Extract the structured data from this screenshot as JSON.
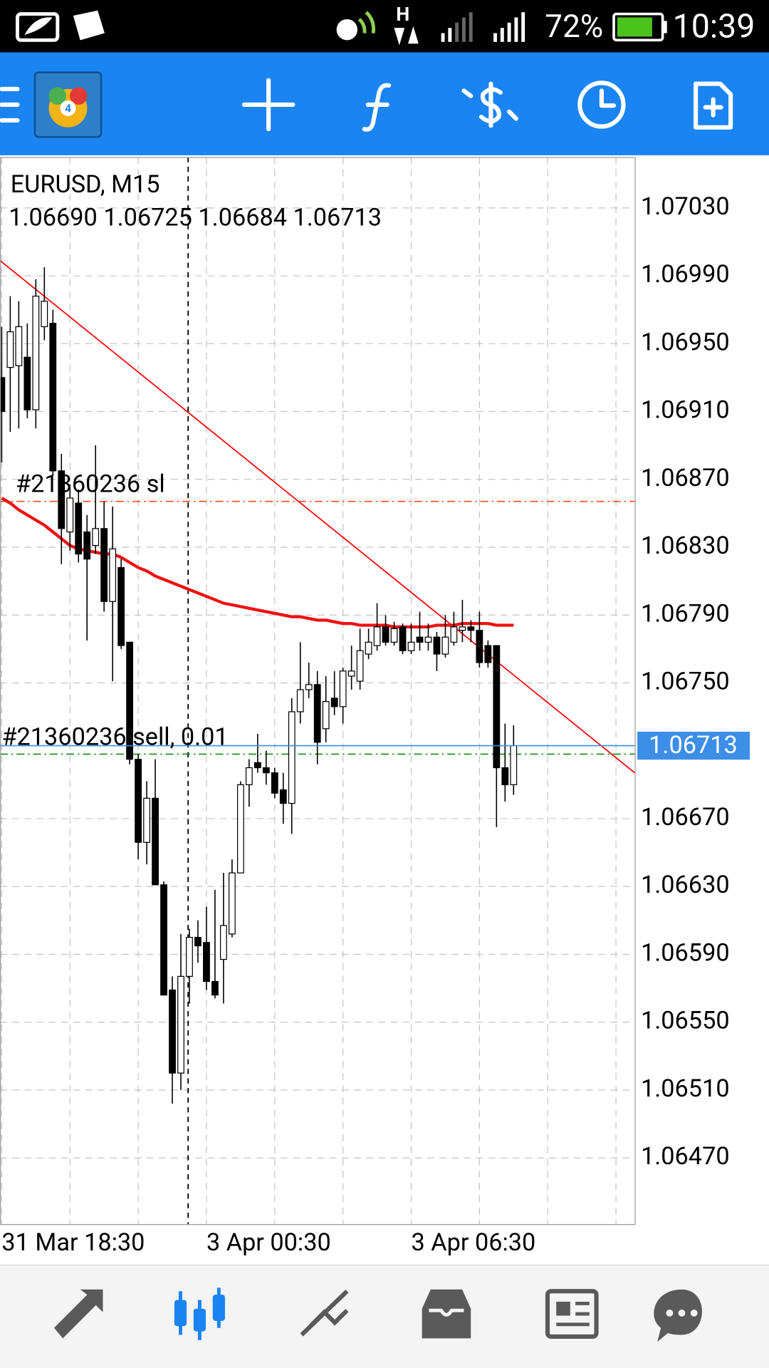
{
  "status_bar": {
    "battery": "72%",
    "time": "10:39"
  },
  "chart_data": {
    "type": "candlestick",
    "title": "EURUSD, M15",
    "subtitle": "1.06690 1.06725 1.06684 1.06713",
    "categories": [
      "31 Mar 18:30",
      null,
      null,
      null,
      null,
      null,
      null,
      null,
      null,
      null,
      null,
      null,
      null,
      null,
      null,
      null,
      null,
      null,
      null,
      null,
      null,
      null,
      null,
      null,
      "3 Apr 00:30",
      null,
      null,
      null,
      null,
      null,
      null,
      null,
      null,
      null,
      null,
      null,
      null,
      null,
      null,
      null,
      null,
      null,
      null,
      null,
      null,
      null,
      null,
      null,
      "3 Apr 06:30",
      null,
      null,
      null,
      null,
      null,
      null,
      null,
      null,
      null,
      null,
      null,
      null
    ],
    "open": [
      1.0693,
      1.06936,
      1.06937,
      1.06942,
      1.06911,
      1.0696,
      1.06962,
      1.06875,
      1.06839,
      1.06856,
      1.06839,
      1.06831,
      1.06841,
      1.06798,
      1.06818,
      1.06774,
      1.06705,
      1.06656,
      1.06682,
      1.06631,
      1.06569,
      1.0652,
      1.06577,
      1.066,
      1.06597,
      1.06574,
      1.06587,
      1.06602,
      1.06638,
      1.0669,
      1.06703,
      1.067,
      1.06697,
      1.06687,
      1.06679,
      1.06733,
      1.06746,
      1.06749,
      1.06723,
      1.06741,
      1.06736,
      1.06754,
      1.06751,
      1.06767,
      1.06772,
      1.06783,
      1.06774,
      1.06783,
      1.06769,
      1.06777,
      1.06774,
      1.06777,
      1.06767,
      1.06774,
      1.06781,
      1.06783,
      1.06781,
      1.06772,
      1.06772,
      1.067,
      1.0669
    ],
    "high": [
      1.0696,
      1.06978,
      1.06975,
      1.06962,
      1.06988,
      1.06995,
      1.0697,
      1.06885,
      1.06867,
      1.06864,
      1.06849,
      1.0689,
      1.06857,
      1.06854,
      1.06823,
      1.06774,
      1.06708,
      1.06692,
      1.06705,
      1.06633,
      1.06577,
      1.06602,
      1.06605,
      1.0661,
      1.06618,
      1.06628,
      1.06638,
      1.06646,
      1.06692,
      1.06705,
      1.0672,
      1.0671,
      1.067,
      1.06697,
      1.06741,
      1.06774,
      1.06762,
      1.06757,
      1.06754,
      1.06757,
      1.06759,
      1.06772,
      1.06782,
      1.06782,
      1.06797,
      1.0679,
      1.06786,
      1.06785,
      1.06785,
      1.06792,
      1.06785,
      1.0678,
      1.0679,
      1.06792,
      1.06799,
      1.06787,
      1.06792,
      1.06775,
      1.06772,
      1.06726,
      1.06725
    ],
    "low": [
      1.0688,
      1.06898,
      1.069,
      1.06906,
      1.069,
      1.06952,
      1.06872,
      1.0682,
      1.06828,
      1.06821,
      1.06775,
      1.06826,
      1.06792,
      1.06751,
      1.0677,
      1.06702,
      1.06646,
      1.06643,
      1.06631,
      1.06566,
      1.06502,
      1.0651,
      1.06561,
      1.06585,
      1.06569,
      1.06564,
      1.06561,
      1.066,
      1.06638,
      1.06677,
      1.06697,
      1.0669,
      1.06682,
      1.06667,
      1.06661,
      1.06726,
      1.06741,
      1.06702,
      1.06715,
      1.06731,
      1.06726,
      1.06746,
      1.06746,
      1.06764,
      1.06769,
      1.06772,
      1.06772,
      1.06767,
      1.06767,
      1.06769,
      1.06769,
      1.06757,
      1.06765,
      1.06772,
      1.06774,
      1.06774,
      1.06759,
      1.06759,
      1.06665,
      1.0668,
      1.06684
    ],
    "close": [
      1.0691,
      1.06957,
      1.0696,
      1.06911,
      1.06978,
      1.06975,
      1.06875,
      1.06841,
      1.06859,
      1.06826,
      1.06823,
      1.06841,
      1.06798,
      1.06829,
      1.06772,
      1.06705,
      1.06656,
      1.06682,
      1.06631,
      1.06566,
      1.0652,
      1.06577,
      1.066,
      1.06595,
      1.06574,
      1.06566,
      1.06607,
      1.06638,
      1.0669,
      1.067,
      1.067,
      1.06697,
      1.06685,
      1.06679,
      1.06733,
      1.06746,
      1.06749,
      1.06715,
      1.06739,
      1.06736,
      1.06757,
      1.06757,
      1.06769,
      1.06774,
      1.06783,
      1.06774,
      1.06782,
      1.06769,
      1.06774,
      1.06774,
      1.06777,
      1.06767,
      1.06777,
      1.06783,
      1.06783,
      1.06781,
      1.06762,
      1.06762,
      1.067,
      1.0669,
      1.06713
    ],
    "up_color": "#ffffff",
    "down_color": "#000000",
    "moving_average": {
      "color": "#ee1111",
      "values": [
        1.06859,
        1.06856,
        1.06852,
        1.06849,
        1.06846,
        1.06843,
        1.06839,
        1.06835,
        1.06831,
        1.06829,
        1.06828,
        1.06827,
        1.06826,
        1.06826,
        1.06824,
        1.06821,
        1.06818,
        1.06816,
        1.06813,
        1.06811,
        1.06809,
        1.06807,
        1.06805,
        1.06803,
        1.06801,
        1.06799,
        1.06797,
        1.06796,
        1.06795,
        1.06794,
        1.06793,
        1.06792,
        1.06791,
        1.0679,
        1.06789,
        1.06789,
        1.06788,
        1.06787,
        1.06787,
        1.06786,
        1.06785,
        1.06785,
        1.06784,
        1.06784,
        1.06784,
        1.06784,
        1.06783,
        1.06783,
        1.06783,
        1.06783,
        1.06783,
        1.06784,
        1.06784,
        1.06784,
        1.06785,
        1.06785,
        1.06785,
        1.06785,
        1.06784,
        1.06784,
        1.06784
      ]
    },
    "trendline": {
      "color": "#ff0000",
      "x": [
        -0.2,
        74.2
      ],
      "values": [
        1.06999,
        1.06697
      ]
    },
    "levels": [
      {
        "label": "#21360236 sl",
        "value": 1.06857,
        "color": "#ff4a1c"
      },
      {
        "label": "#21360236 sell, 0.01",
        "value": 1.06708,
        "color": "#138a13"
      }
    ],
    "bid": 1.06713,
    "bid_color": "#3d8ee6",
    "period_separator": 21.85,
    "xlim": [
      -0.2,
      74.2
    ],
    "xticks": [
      0,
      8,
      16,
      24,
      32,
      40,
      48,
      56,
      64,
      72
    ],
    "ylim": [
      1.06431,
      1.0706
    ],
    "yticks": [
      {
        "value": 1.0703,
        "label": "1.07030"
      },
      {
        "value": 1.0699,
        "label": "1.06990"
      },
      {
        "value": 1.0695,
        "label": "1.06950"
      },
      {
        "value": 1.0691,
        "label": "1.06910"
      },
      {
        "value": 1.0687,
        "label": "1.06870"
      },
      {
        "value": 1.0683,
        "label": "1.06830"
      },
      {
        "value": 1.0679,
        "label": "1.06790"
      },
      {
        "value": 1.0675,
        "label": "1.06750"
      },
      {
        "value": 1.0667,
        "label": "1.06670"
      },
      {
        "value": 1.0663,
        "label": "1.06630"
      },
      {
        "value": 1.0659,
        "label": "1.06590"
      },
      {
        "value": 1.0655,
        "label": "1.06550"
      },
      {
        "value": 1.0651,
        "label": "1.06510"
      },
      {
        "value": 1.0647,
        "label": "1.06470"
      }
    ],
    "grid": true
  }
}
